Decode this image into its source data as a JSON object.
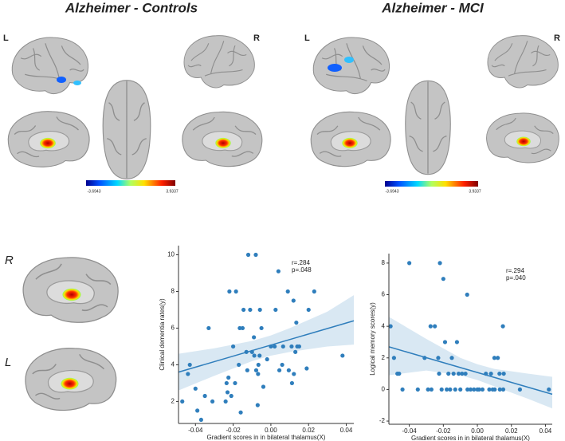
{
  "figure_top": {
    "left_title": "Alzheimer - Controls",
    "right_title": "Alzheimer - MCI",
    "left_hemi_l": "L",
    "left_hemi_r": "R",
    "right_hemi_l": "L",
    "right_hemi_r": "R",
    "left_colorbar_min": "-3.6943",
    "left_colorbar_max": "3.9337",
    "right_colorbar_min": "-3.6943",
    "right_colorbar_max": "3.9337"
  },
  "thalamus_labels": {
    "upper": "R",
    "lower": "L"
  },
  "chart_data": [
    {
      "type": "scatter",
      "color": "#2f7ebc",
      "xlabel": "Gradient scores in in bilateral thalamus(X)",
      "ylabel": "Clinical dementia rates(y)",
      "annotations": [
        "r=.284",
        "p=.048"
      ],
      "xlim": [
        -0.049,
        0.044
      ],
      "ylim": [
        0.8,
        10.5
      ],
      "xticks": [
        -0.04,
        -0.02,
        {
          "value": 0,
          "label": "0.00"
        },
        0.02,
        0.04
      ],
      "yticks": [
        2,
        4,
        6,
        8,
        10
      ],
      "x": [
        -0.047,
        -0.044,
        -0.043,
        -0.04,
        -0.039,
        -0.037,
        -0.035,
        -0.033,
        -0.031,
        -0.024,
        -0.023,
        -0.0235,
        -0.0225,
        -0.022,
        -0.021,
        -0.02,
        -0.019,
        -0.0185,
        -0.017,
        -0.0165,
        -0.016,
        -0.015,
        -0.0145,
        -0.013,
        -0.0125,
        -0.012,
        -0.011,
        -0.01,
        -0.009,
        -0.0088,
        -0.008,
        -0.0078,
        -0.007,
        -0.0068,
        -0.0066,
        -0.006,
        -0.0058,
        -0.005,
        -0.004,
        -0.002,
        0.0,
        0.002,
        0.0025,
        0.004,
        0.0045,
        0.006,
        0.0065,
        0.009,
        0.0095,
        0.011,
        0.0112,
        0.012,
        0.0122,
        0.013,
        0.0135,
        0.014,
        0.015,
        0.019,
        0.02,
        0.023,
        0.038
      ],
      "values": [
        2.0,
        3.5,
        4.0,
        2.7,
        1.5,
        1.0,
        2.3,
        6.0,
        2.0,
        2.0,
        2.5,
        3.0,
        3.3,
        8.0,
        2.3,
        5.0,
        3.0,
        8.0,
        4.0,
        6.0,
        1.4,
        6.0,
        7.0,
        4.7,
        3.7,
        10.0,
        7.0,
        4.7,
        5.5,
        4.5,
        10.0,
        3.7,
        1.8,
        3.5,
        4.0,
        4.5,
        7.0,
        6.0,
        2.8,
        4.3,
        5.0,
        5.0,
        7.0,
        9.1,
        3.7,
        4.0,
        5.0,
        8.0,
        3.7,
        5.0,
        3.0,
        7.5,
        3.5,
        4.7,
        6.3,
        5.0,
        5.0,
        3.8,
        7.0,
        8.0,
        4.5
      ],
      "fit": {
        "x": [
          -0.049,
          0.044
        ],
        "y": [
          3.6,
          6.4
        ]
      },
      "band": {
        "x": [
          -0.049,
          -0.03,
          -0.01,
          0.0,
          0.01,
          0.03,
          0.044
        ],
        "lower": [
          2.6,
          3.4,
          4.2,
          4.5,
          4.7,
          5.0,
          5.1
        ],
        "upper": [
          4.6,
          4.9,
          5.3,
          5.6,
          6.0,
          6.9,
          7.8
        ]
      }
    },
    {
      "type": "scatter",
      "color": "#2f7ebc",
      "xlabel": "Gradient scores in in bilateral thalamus(X)",
      "ylabel": "Logical memory scores(y)",
      "annotations": [
        "r=.294",
        "p=.040"
      ],
      "xlim": [
        -0.052,
        0.044
      ],
      "ylim": [
        -2.2,
        8.6
      ],
      "xticks": [
        -0.04,
        -0.02,
        {
          "value": 0,
          "label": "0.00"
        },
        0.02,
        0.04
      ],
      "yticks": [
        -2,
        0,
        2,
        4,
        6,
        8
      ],
      "x": [
        -0.051,
        -0.049,
        -0.047,
        -0.046,
        -0.044,
        -0.04,
        -0.035,
        -0.031,
        -0.029,
        -0.0275,
        -0.027,
        -0.025,
        -0.023,
        -0.0225,
        -0.022,
        -0.021,
        -0.02,
        -0.019,
        -0.018,
        -0.017,
        -0.016,
        -0.015,
        -0.014,
        -0.013,
        -0.012,
        -0.011,
        -0.01,
        -0.009,
        -0.007,
        -0.006,
        -0.0058,
        -0.004,
        -0.002,
        0.0,
        0.001,
        0.003,
        0.005,
        0.007,
        0.008,
        0.009,
        0.01,
        0.0102,
        0.012,
        0.013,
        0.0132,
        0.015,
        0.0152,
        0.0155,
        0.025,
        0.042
      ],
      "values": [
        4,
        2,
        1,
        1,
        0,
        8,
        0,
        2,
        0,
        4,
        0,
        4,
        2,
        1,
        8,
        0,
        7,
        3,
        0,
        1,
        0,
        2,
        1,
        0,
        3,
        1,
        0,
        1,
        1,
        6,
        0,
        0,
        0,
        0,
        0,
        0,
        1,
        0,
        1,
        0,
        2,
        0,
        2,
        1,
        0,
        4,
        0,
        1,
        0,
        0
      ],
      "fit": {
        "x": [
          -0.052,
          0.044
        ],
        "y": [
          2.7,
          -0.3
        ]
      },
      "band": {
        "x": [
          -0.052,
          -0.03,
          -0.01,
          0.0,
          0.01,
          0.03,
          0.044
        ],
        "lower": [
          0.9,
          1.2,
          0.9,
          0.6,
          0.2,
          -0.6,
          -1.2
        ],
        "upper": [
          4.6,
          3.2,
          2.0,
          1.6,
          1.3,
          1.0,
          0.8
        ]
      }
    }
  ]
}
